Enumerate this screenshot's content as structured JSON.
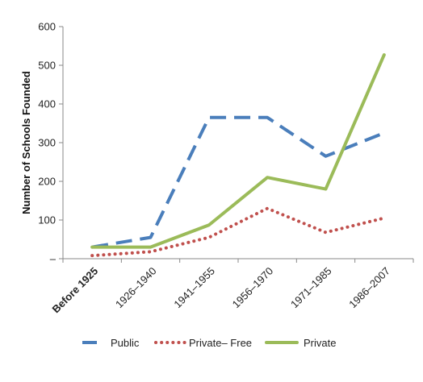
{
  "chart_data": {
    "type": "line",
    "title": "",
    "xlabel": "",
    "ylabel": "Number of Schools Founded",
    "categories": [
      "Before 1925",
      "1926–1940",
      "1941–1955",
      "1956–1970",
      "1971–1985",
      "1986–2007"
    ],
    "y_tick_labels": [
      "–",
      "100",
      "200",
      "300",
      "400",
      "500",
      "600"
    ],
    "ylim": [
      0,
      600
    ],
    "grid": false,
    "legend_position": "bottom",
    "series": [
      {
        "name": "Public",
        "values": [
          30,
          55,
          365,
          365,
          265,
          325
        ],
        "color": "#4a7ebb",
        "style": "dashed"
      },
      {
        "name": "Private– Free",
        "values": [
          8,
          18,
          55,
          130,
          68,
          105
        ],
        "color": "#c0504d",
        "style": "dotted"
      },
      {
        "name": "Private",
        "values": [
          30,
          30,
          87,
          210,
          180,
          527
        ],
        "color": "#9bbb59",
        "style": "solid"
      }
    ]
  }
}
